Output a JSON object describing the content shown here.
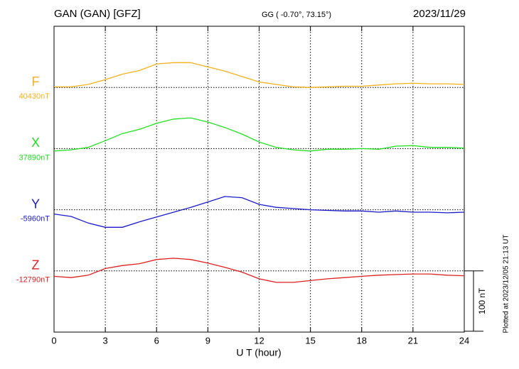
{
  "chart_data": {
    "type": "line",
    "title": "GAN (GAN)  [GFZ]",
    "subtitle": "GG ( -0.70°,  73.15°)",
    "date": "2023/11/29",
    "x_label": "U T (hour)",
    "footnote": "Plotted at 2023/12/05 21:13 UT",
    "xlim": [
      0,
      24
    ],
    "xticks": [
      0,
      3,
      6,
      9,
      12,
      15,
      18,
      21,
      24
    ],
    "grid": true,
    "scale": {
      "value": 100,
      "label": "100 nT"
    },
    "x": [
      0,
      1,
      2,
      3,
      4,
      5,
      6,
      7,
      8,
      9,
      10,
      11,
      12,
      13,
      14,
      15,
      16,
      17,
      18,
      19,
      20,
      21,
      22,
      23,
      24
    ],
    "series": [
      {
        "name": "F",
        "color": "#f5b21a",
        "baseline": {
          "value": 40430,
          "label": "40430nT"
        },
        "values": [
          40431,
          40431,
          40435,
          40443,
          40452,
          40458,
          40469,
          40471,
          40471,
          40464,
          40457,
          40448,
          40439,
          40435,
          40431,
          40430,
          40431,
          40432,
          40432,
          40434,
          40436,
          40437,
          40436,
          40436,
          40435
        ]
      },
      {
        "name": "X",
        "color": "#22e022",
        "baseline": {
          "value": 37890,
          "label": "37890nT"
        },
        "values": [
          37886,
          37888,
          37892,
          37903,
          37915,
          37922,
          37932,
          37939,
          37941,
          37934,
          37925,
          37914,
          37901,
          37892,
          37888,
          37886,
          37889,
          37889,
          37890,
          37889,
          37894,
          37895,
          37892,
          37892,
          37891
        ]
      },
      {
        "name": "Y",
        "color": "#1a1acc",
        "baseline": {
          "value": -5960,
          "label": "-5960nT"
        },
        "values": [
          -5967,
          -5971,
          -5982,
          -5989,
          -5989,
          -5980,
          -5972,
          -5964,
          -5956,
          -5947,
          -5938,
          -5940,
          -5951,
          -5956,
          -5958,
          -5960,
          -5961,
          -5962,
          -5962,
          -5964,
          -5962,
          -5964,
          -5964,
          -5965,
          -5964
        ]
      },
      {
        "name": "Z",
        "color": "#e02020",
        "baseline": {
          "value": -12790,
          "label": "-12790nT"
        },
        "values": [
          -12799,
          -12801,
          -12797,
          -12786,
          -12781,
          -12778,
          -12771,
          -12769,
          -12771,
          -12777,
          -12784,
          -12792,
          -12803,
          -12809,
          -12809,
          -12806,
          -12803,
          -12801,
          -12799,
          -12797,
          -12796,
          -12795,
          -12795,
          -12797,
          -12798
        ]
      }
    ]
  }
}
